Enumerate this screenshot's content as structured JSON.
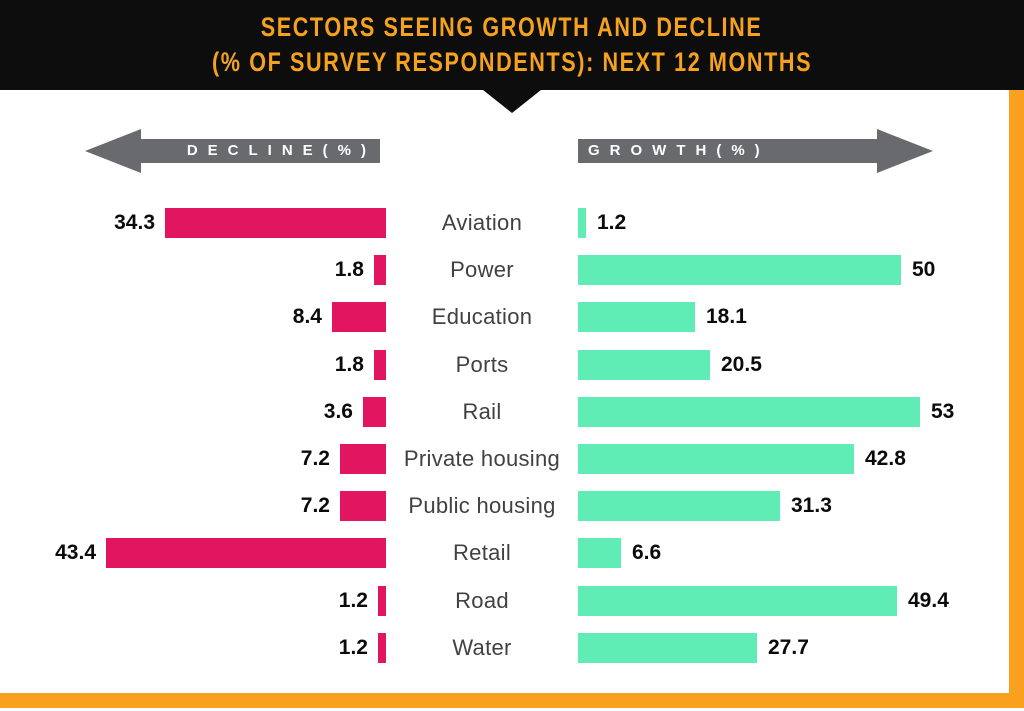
{
  "title": {
    "line1": "SECTORS SEEING GROWTH AND DECLINE",
    "line2": "(% OF SURVEY RESPONDENTS): NEXT 12 MONTHS"
  },
  "axis_arrows": {
    "decline_label": "DECLINE(%)",
    "growth_label": "GROWTH(%)"
  },
  "colors": {
    "header_bg": "#0d0d0d",
    "title_text": "#f5a21e",
    "accent_orange": "#f9a01f",
    "arrow_gray": "#696a6d",
    "decline": "#e11560",
    "growth": "#5fecb5",
    "category_text": "#414042",
    "value_text": "#0b0b0b"
  },
  "chart_data": {
    "type": "bar",
    "variant": "diverging-horizontal",
    "title": "SECTORS SEEING GROWTH AND DECLINE (% OF SURVEY RESPONDENTS): NEXT 12 MONTHS",
    "categories": [
      "Aviation",
      "Power",
      "Education",
      "Ports",
      "Rail",
      "Private housing",
      "Public housing",
      "Retail",
      "Road",
      "Water"
    ],
    "series": [
      {
        "name": "DECLINE(%)",
        "direction": "left",
        "color": "#e11560",
        "values": [
          34.3,
          1.8,
          8.4,
          1.8,
          3.6,
          7.2,
          7.2,
          43.4,
          1.2,
          1.2
        ]
      },
      {
        "name": "GROWTH(%)",
        "direction": "right",
        "color": "#5fecb5",
        "values": [
          1.2,
          50,
          18.1,
          20.5,
          53,
          42.8,
          31.3,
          6.6,
          49.4,
          27.7
        ]
      }
    ],
    "xlim": [
      0,
      55
    ],
    "grid": false,
    "value_labels_shown": true,
    "legend_position": "arrow-headers-above-chart"
  }
}
